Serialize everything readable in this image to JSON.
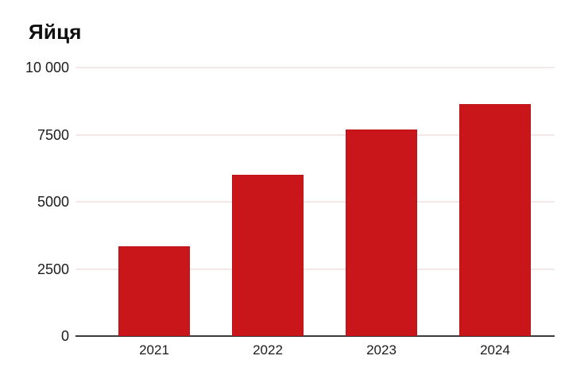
{
  "chart_data": {
    "type": "bar",
    "title": "Яйця",
    "categories": [
      "2021",
      "2022",
      "2023",
      "2024"
    ],
    "values": [
      3350,
      6000,
      7700,
      8650
    ],
    "xlabel": "",
    "ylabel": "",
    "ylim": [
      0,
      10000
    ],
    "yticks": [
      {
        "value": 0,
        "label": "0"
      },
      {
        "value": 2500,
        "label": "2500"
      },
      {
        "value": 5000,
        "label": "5000"
      },
      {
        "value": 7500,
        "label": "7500"
      },
      {
        "value": 10000,
        "label": "10 000"
      }
    ],
    "grid": true,
    "legend_position": "none",
    "colors": {
      "bar": "#c9161a",
      "bar_edge": "#a81014",
      "gridline": "#f3e8e7",
      "axis": "#3a3a3a",
      "tick_text": "#1c1c1c",
      "title_text": "#0f0f0f",
      "background": "#ffffff"
    }
  }
}
